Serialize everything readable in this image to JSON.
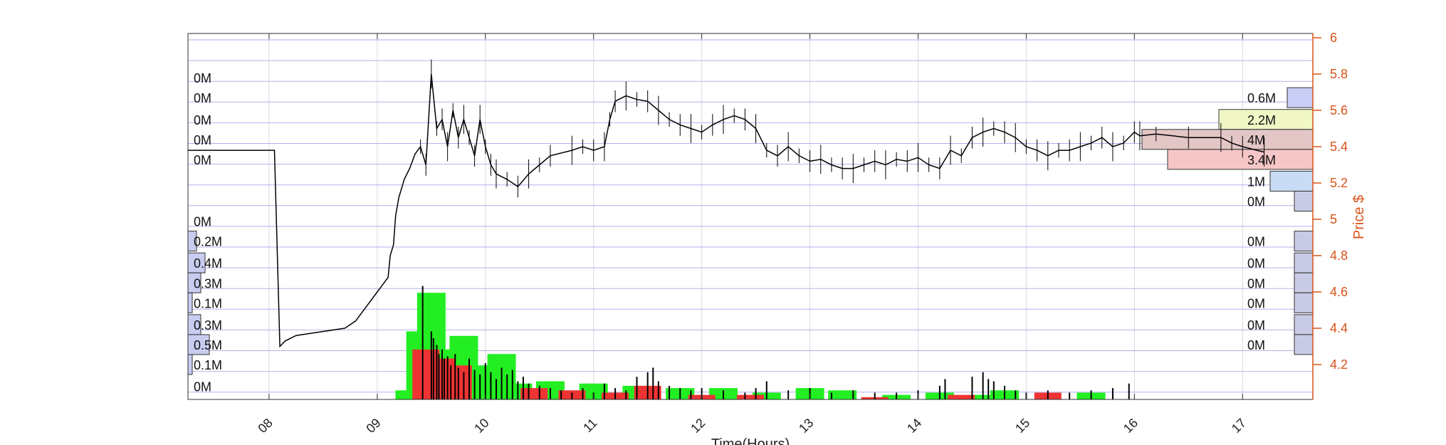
{
  "chart_data": {
    "type": "candlestick-volume-profile",
    "xlabel": "Time(Hours)",
    "ylabel": "Price $",
    "x_ticks": [
      "08",
      "09",
      "10",
      "11",
      "12",
      "13",
      "14",
      "15",
      "16",
      "17"
    ],
    "y_ticks": [
      "6",
      "5.8",
      "5.6",
      "5.4",
      "5.2",
      "5",
      "4.8",
      "4.6",
      "4.4",
      "4.2"
    ],
    "xlim_hours": [
      7.25,
      17.65
    ],
    "ylim": [
      4.0,
      6.0
    ],
    "grid": true,
    "price_path": [
      [
        7.25,
        5.38
      ],
      [
        8.05,
        5.38
      ],
      [
        8.1,
        4.3
      ],
      [
        8.15,
        4.33
      ],
      [
        8.25,
        4.36
      ],
      [
        8.7,
        4.4
      ],
      [
        8.8,
        4.44
      ],
      [
        8.9,
        4.52
      ],
      [
        9.0,
        4.6
      ],
      [
        9.05,
        4.64
      ],
      [
        9.1,
        4.68
      ],
      [
        9.12,
        4.8
      ],
      [
        9.15,
        4.86
      ],
      [
        9.17,
        5.02
      ],
      [
        9.2,
        5.12
      ],
      [
        9.25,
        5.22
      ],
      [
        9.3,
        5.28
      ],
      [
        9.35,
        5.36
      ],
      [
        9.4,
        5.4
      ],
      [
        9.45,
        5.3
      ],
      [
        9.5,
        5.8
      ],
      [
        9.55,
        5.5
      ],
      [
        9.6,
        5.55
      ],
      [
        9.65,
        5.4
      ],
      [
        9.7,
        5.6
      ],
      [
        9.75,
        5.45
      ],
      [
        9.8,
        5.55
      ],
      [
        9.85,
        5.45
      ],
      [
        9.9,
        5.35
      ],
      [
        9.95,
        5.55
      ],
      [
        10.0,
        5.4
      ],
      [
        10.05,
        5.3
      ],
      [
        10.1,
        5.25
      ],
      [
        10.2,
        5.22
      ],
      [
        10.3,
        5.18
      ],
      [
        10.4,
        5.25
      ],
      [
        10.5,
        5.3
      ],
      [
        10.6,
        5.35
      ],
      [
        10.8,
        5.38
      ],
      [
        10.9,
        5.4
      ],
      [
        11.0,
        5.38
      ],
      [
        11.1,
        5.4
      ],
      [
        11.15,
        5.55
      ],
      [
        11.2,
        5.65
      ],
      [
        11.3,
        5.68
      ],
      [
        11.4,
        5.66
      ],
      [
        11.5,
        5.65
      ],
      [
        11.6,
        5.6
      ],
      [
        11.7,
        5.55
      ],
      [
        11.8,
        5.52
      ],
      [
        11.9,
        5.5
      ],
      [
        12.0,
        5.48
      ],
      [
        12.1,
        5.52
      ],
      [
        12.2,
        5.55
      ],
      [
        12.3,
        5.57
      ],
      [
        12.4,
        5.55
      ],
      [
        12.5,
        5.5
      ],
      [
        12.6,
        5.38
      ],
      [
        12.7,
        5.35
      ],
      [
        12.8,
        5.4
      ],
      [
        12.9,
        5.35
      ],
      [
        13.0,
        5.32
      ],
      [
        13.1,
        5.33
      ],
      [
        13.2,
        5.3
      ],
      [
        13.3,
        5.28
      ],
      [
        13.4,
        5.28
      ],
      [
        13.5,
        5.3
      ],
      [
        13.6,
        5.32
      ],
      [
        13.7,
        5.3
      ],
      [
        13.8,
        5.33
      ],
      [
        13.9,
        5.32
      ],
      [
        14.0,
        5.34
      ],
      [
        14.1,
        5.3
      ],
      [
        14.2,
        5.28
      ],
      [
        14.3,
        5.38
      ],
      [
        14.4,
        5.35
      ],
      [
        14.5,
        5.45
      ],
      [
        14.6,
        5.48
      ],
      [
        14.7,
        5.5
      ],
      [
        14.8,
        5.48
      ],
      [
        14.9,
        5.45
      ],
      [
        15.0,
        5.4
      ],
      [
        15.1,
        5.38
      ],
      [
        15.2,
        5.35
      ],
      [
        15.3,
        5.38
      ],
      [
        15.4,
        5.38
      ],
      [
        15.5,
        5.4
      ],
      [
        15.6,
        5.42
      ],
      [
        15.7,
        5.45
      ],
      [
        15.8,
        5.4
      ],
      [
        15.9,
        5.42
      ],
      [
        16.0,
        5.48
      ],
      [
        16.05,
        5.46
      ],
      [
        16.2,
        5.47
      ],
      [
        16.5,
        5.45
      ],
      [
        16.8,
        5.45
      ],
      [
        16.9,
        5.42
      ],
      [
        17.0,
        5.4
      ],
      [
        17.2,
        5.37
      ]
    ],
    "volume_bars": {
      "green": [
        [
          9.3,
          0.04
        ],
        [
          9.4,
          0.3
        ],
        [
          9.5,
          0.47
        ],
        [
          9.65,
          0.22
        ],
        [
          9.8,
          0.28
        ],
        [
          9.95,
          0.15
        ],
        [
          10.15,
          0.2
        ],
        [
          10.3,
          0.07
        ],
        [
          10.6,
          0.08
        ],
        [
          11.0,
          0.07
        ],
        [
          11.4,
          0.06
        ],
        [
          11.8,
          0.05
        ],
        [
          12.2,
          0.05
        ],
        [
          12.6,
          0.03
        ],
        [
          13.0,
          0.05
        ],
        [
          13.3,
          0.04
        ],
        [
          13.8,
          0.02
        ],
        [
          14.2,
          0.03
        ],
        [
          14.6,
          0.02
        ],
        [
          14.8,
          0.04
        ],
        [
          15.6,
          0.03
        ]
      ],
      "red": [
        [
          9.45,
          0.22
        ],
        [
          9.6,
          0.18
        ],
        [
          9.75,
          0.15
        ],
        [
          10.45,
          0.05
        ],
        [
          10.8,
          0.04
        ],
        [
          11.2,
          0.03
        ],
        [
          11.5,
          0.06
        ],
        [
          12.0,
          0.02
        ],
        [
          12.45,
          0.02
        ],
        [
          13.6,
          0.01
        ],
        [
          14.4,
          0.02
        ],
        [
          15.2,
          0.03
        ]
      ],
      "black_spikes": [
        [
          9.42,
          0.5
        ],
        [
          9.5,
          0.3
        ],
        [
          9.52,
          0.27
        ],
        [
          9.55,
          0.24
        ],
        [
          9.57,
          0.2
        ],
        [
          9.6,
          0.22
        ],
        [
          9.62,
          0.18
        ],
        [
          9.65,
          0.19
        ],
        [
          9.68,
          0.15
        ],
        [
          9.72,
          0.2
        ],
        [
          9.75,
          0.14
        ],
        [
          9.8,
          0.12
        ],
        [
          9.85,
          0.18
        ],
        [
          9.9,
          0.13
        ],
        [
          9.95,
          0.11
        ],
        [
          10.0,
          0.16
        ],
        [
          10.05,
          0.12
        ],
        [
          10.1,
          0.09
        ],
        [
          10.15,
          0.14
        ],
        [
          10.2,
          0.11
        ],
        [
          10.25,
          0.13
        ],
        [
          10.3,
          0.08
        ],
        [
          10.35,
          0.1
        ],
        [
          10.4,
          0.07
        ],
        [
          10.5,
          0.06
        ],
        [
          10.6,
          0.05
        ],
        [
          10.7,
          0.04
        ],
        [
          10.8,
          0.03
        ],
        [
          10.9,
          0.05
        ],
        [
          11.0,
          0.03
        ],
        [
          11.1,
          0.07
        ],
        [
          11.2,
          0.05
        ],
        [
          11.3,
          0.04
        ],
        [
          11.4,
          0.1
        ],
        [
          11.5,
          0.12
        ],
        [
          11.55,
          0.14
        ],
        [
          11.6,
          0.08
        ],
        [
          11.7,
          0.06
        ],
        [
          11.8,
          0.05
        ],
        [
          11.9,
          0.04
        ],
        [
          12.0,
          0.05
        ],
        [
          12.2,
          0.04
        ],
        [
          12.4,
          0.03
        ],
        [
          12.5,
          0.05
        ],
        [
          12.6,
          0.08
        ],
        [
          12.8,
          0.04
        ],
        [
          13.0,
          0.05
        ],
        [
          13.2,
          0.03
        ],
        [
          13.4,
          0.04
        ],
        [
          13.6,
          0.03
        ],
        [
          13.8,
          0.03
        ],
        [
          14.0,
          0.04
        ],
        [
          14.2,
          0.06
        ],
        [
          14.25,
          0.09
        ],
        [
          14.5,
          0.1
        ],
        [
          14.6,
          0.12
        ],
        [
          14.65,
          0.09
        ],
        [
          14.7,
          0.08
        ],
        [
          14.8,
          0.06
        ],
        [
          14.9,
          0.04
        ],
        [
          15.0,
          0.03
        ],
        [
          15.2,
          0.04
        ],
        [
          15.4,
          0.03
        ],
        [
          15.6,
          0.04
        ],
        [
          15.8,
          0.05
        ],
        [
          15.95,
          0.07
        ]
      ]
    },
    "left_profile": [
      {
        "label": "0M",
        "price": 5.78,
        "volume": 0
      },
      {
        "label": "0M",
        "price": 5.67,
        "volume": 0
      },
      {
        "label": "0M",
        "price": 5.55,
        "volume": 0
      },
      {
        "label": "0M",
        "price": 5.44,
        "volume": 0
      },
      {
        "label": "0M",
        "price": 5.33,
        "volume": 0
      },
      {
        "label": "0M",
        "price": 4.99,
        "volume": 0
      },
      {
        "label": "0.2M",
        "price": 4.88,
        "volume": 0.2
      },
      {
        "label": "0.4M",
        "price": 4.76,
        "volume": 0.4
      },
      {
        "label": "0.3M",
        "price": 4.65,
        "volume": 0.3
      },
      {
        "label": "0.1M",
        "price": 4.54,
        "volume": 0.1
      },
      {
        "label": "0.3M",
        "price": 4.42,
        "volume": 0.3
      },
      {
        "label": "0.5M",
        "price": 4.31,
        "volume": 0.5
      },
      {
        "label": "0.1M",
        "price": 4.2,
        "volume": 0.1
      },
      {
        "label": "0M",
        "price": 4.08,
        "volume": 0
      }
    ],
    "right_profile": [
      {
        "label": "0.6M",
        "price": 5.67,
        "volume": 0.6,
        "color": "#c8cdf5"
      },
      {
        "label": "2.2M",
        "price": 5.55,
        "volume": 2.2,
        "color": "#f0f7c5"
      },
      {
        "label": "4M",
        "price": 5.44,
        "volume": 4.0,
        "color": "#e3c6c6"
      },
      {
        "label": "3.4M",
        "price": 5.33,
        "volume": 3.4,
        "color": "#f6c6c6"
      },
      {
        "label": "1M",
        "price": 5.21,
        "volume": 1.0,
        "color": "#c9dcf5"
      },
      {
        "label": "0M",
        "price": 5.1,
        "volume": 0,
        "color": "#c9cbe6"
      },
      {
        "label": "0M",
        "price": 4.88,
        "volume": 0,
        "color": "#c9cbe6"
      },
      {
        "label": "0M",
        "price": 4.76,
        "volume": 0,
        "color": "#c9cbe6"
      },
      {
        "label": "0M",
        "price": 4.65,
        "volume": 0,
        "color": "#c9cbe6"
      },
      {
        "label": "0M",
        "price": 4.54,
        "volume": 0,
        "color": "#c9cbe6"
      },
      {
        "label": "0M",
        "price": 4.42,
        "volume": 0,
        "color": "#c9cbe6"
      },
      {
        "label": "0M",
        "price": 4.31,
        "volume": 0,
        "color": "#c9cbe6"
      }
    ],
    "colors": {
      "axis_right": "#d95319",
      "grid": "#8080e0",
      "price": "#000000",
      "volume_up": "#22ee22",
      "volume_down": "#ee3333",
      "profile_left": "#c8cdf0"
    }
  }
}
